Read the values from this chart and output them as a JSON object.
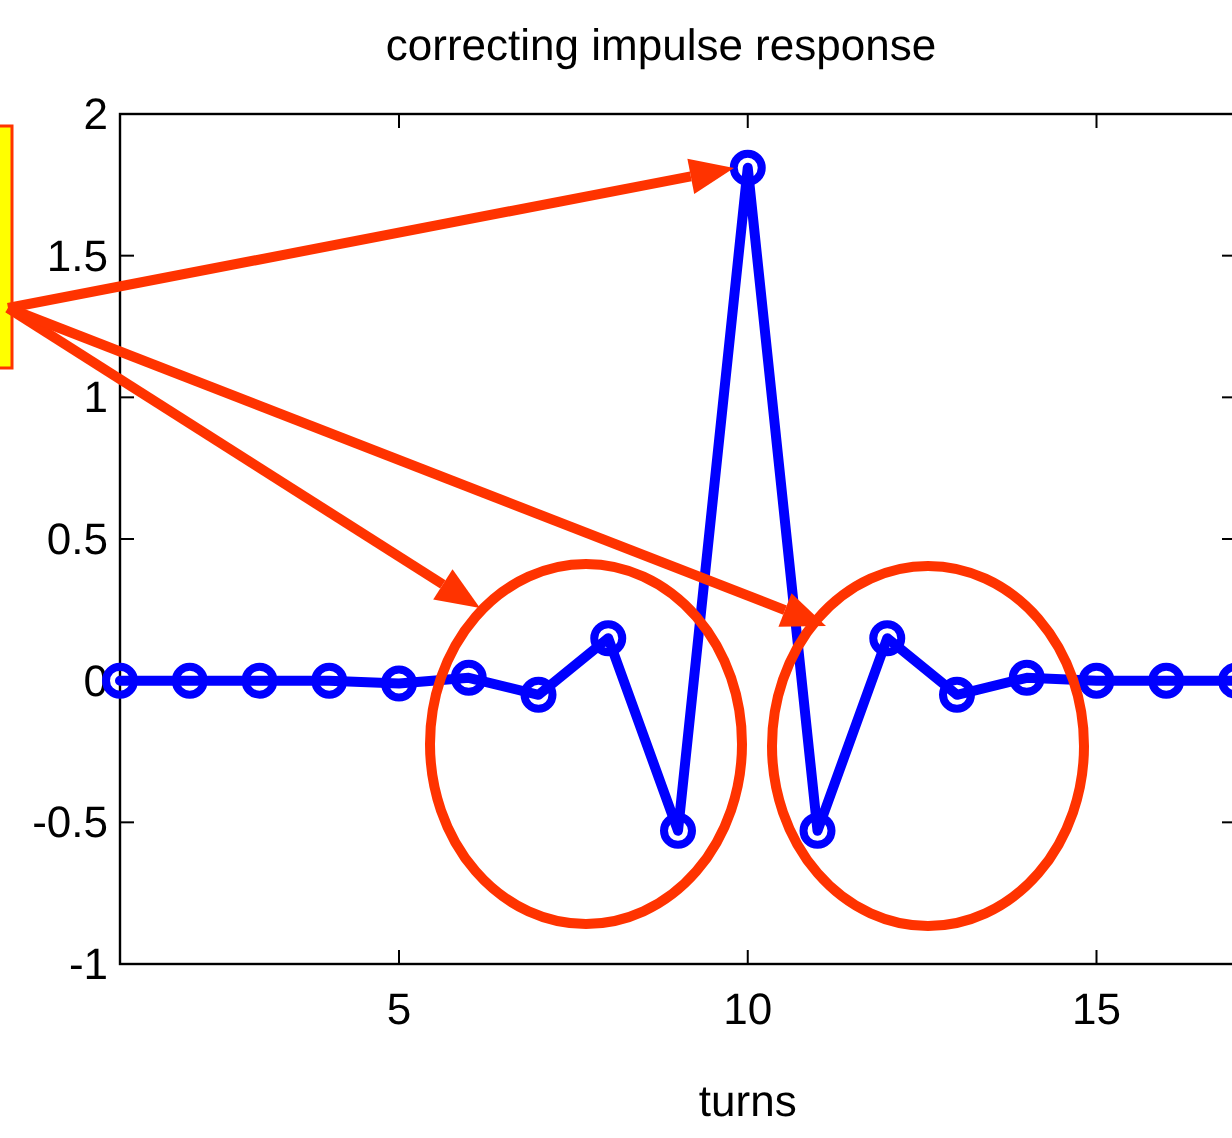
{
  "chart_data": {
    "type": "line",
    "title": "correcting impulse response",
    "xlabel": "turns",
    "x": [
      1,
      2,
      3,
      4,
      5,
      6,
      7,
      8,
      9,
      10,
      11,
      12,
      13,
      14,
      15,
      16,
      17
    ],
    "series": [
      {
        "color": "#0000ff",
        "values": [
          0,
          0,
          0,
          0,
          -0.01,
          0.01,
          -0.05,
          0.15,
          -0.53,
          1.81,
          -0.53,
          0.15,
          -0.05,
          0.01,
          0,
          0,
          0
        ]
      }
    ],
    "xlim": [
      1,
      17
    ],
    "xticks": [
      5,
      10,
      15
    ],
    "ylim": [
      -1,
      2
    ],
    "yticks": [
      -1,
      -0.5,
      0,
      0.5,
      1,
      1.5,
      2
    ],
    "grid": false,
    "marker": "circle",
    "line_style": "solid"
  }
}
